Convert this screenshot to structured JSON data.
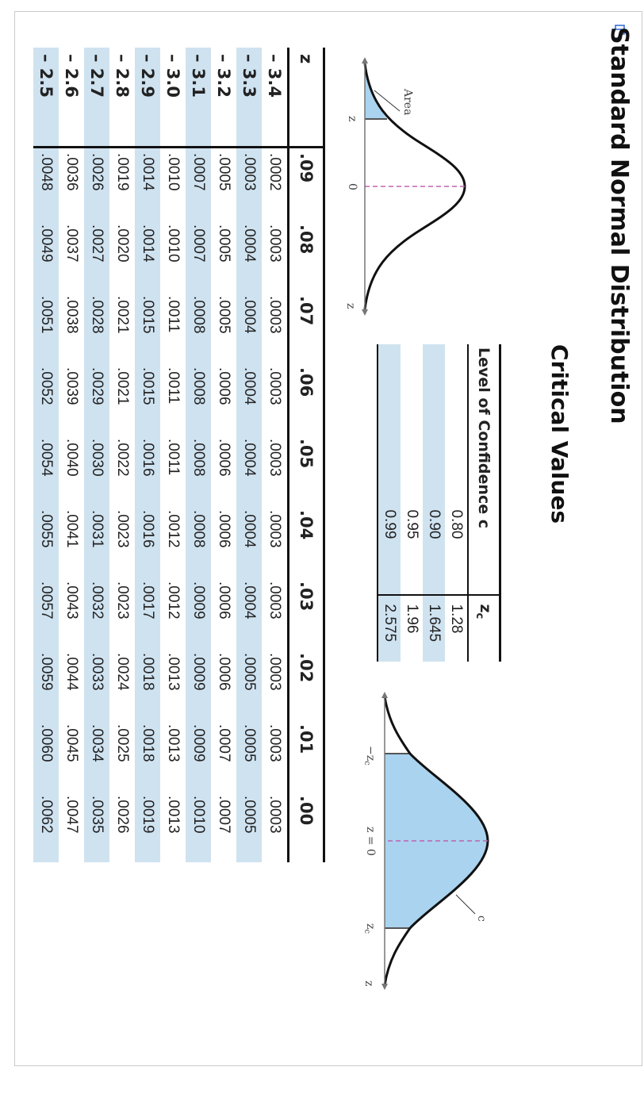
{
  "title": "Standard Normal Distribution",
  "critical_values": {
    "title": "Critical Values",
    "headers": {
      "level": "Level of Confidence c",
      "zc": "z",
      "zc_sub": "c"
    },
    "rows": [
      {
        "level": "0.80",
        "zc": "1.28"
      },
      {
        "level": "0.90",
        "zc": "1.645"
      },
      {
        "level": "0.95",
        "zc": "1.96"
      },
      {
        "level": "0.99",
        "zc": "2.575"
      }
    ]
  },
  "left_curve": {
    "area_label": "Area",
    "z_label": "z",
    "zero_label": "0",
    "axis_label": "z"
  },
  "right_curve": {
    "c_label": "c",
    "neg_zc_label": "−z",
    "neg_zc_sub": "c",
    "zero_label": "z = 0",
    "zc_label": "z",
    "zc_sub": "c",
    "axis_label": "z"
  },
  "z_table": {
    "headers": [
      "z",
      ".09",
      ".08",
      ".07",
      ".06",
      ".05",
      ".04",
      ".03",
      ".02",
      ".01",
      ".00"
    ],
    "rows": [
      {
        "z": "– 3.4",
        "values": [
          ".0002",
          ".0003",
          ".0003",
          ".0003",
          ".0003",
          ".0003",
          ".0003",
          ".0003",
          ".0003",
          ".0003"
        ]
      },
      {
        "z": "– 3.3",
        "values": [
          ".0003",
          ".0004",
          ".0004",
          ".0004",
          ".0004",
          ".0004",
          ".0004",
          ".0005",
          ".0005",
          ".0005"
        ]
      },
      {
        "z": "– 3.2",
        "values": [
          ".0005",
          ".0005",
          ".0005",
          ".0006",
          ".0006",
          ".0006",
          ".0006",
          ".0006",
          ".0007",
          ".0007"
        ]
      },
      {
        "z": "– 3.1",
        "values": [
          ".0007",
          ".0007",
          ".0008",
          ".0008",
          ".0008",
          ".0008",
          ".0009",
          ".0009",
          ".0009",
          ".0010"
        ]
      },
      {
        "z": "– 3.0",
        "values": [
          ".0010",
          ".0010",
          ".0011",
          ".0011",
          ".0011",
          ".0012",
          ".0012",
          ".0013",
          ".0013",
          ".0013"
        ]
      },
      {
        "z": "– 2.9",
        "values": [
          ".0014",
          ".0014",
          ".0015",
          ".0015",
          ".0016",
          ".0016",
          ".0017",
          ".0018",
          ".0018",
          ".0019"
        ]
      },
      {
        "z": "– 2.8",
        "values": [
          ".0019",
          ".0020",
          ".0021",
          ".0021",
          ".0022",
          ".0023",
          ".0023",
          ".0024",
          ".0025",
          ".0026"
        ]
      },
      {
        "z": "– 2.7",
        "values": [
          ".0026",
          ".0027",
          ".0028",
          ".0029",
          ".0030",
          ".0031",
          ".0032",
          ".0033",
          ".0034",
          ".0035"
        ]
      },
      {
        "z": "– 2.6",
        "values": [
          ".0036",
          ".0037",
          ".0038",
          ".0039",
          ".0040",
          ".0041",
          ".0043",
          ".0044",
          ".0045",
          ".0047"
        ]
      },
      {
        "z": "– 2.5",
        "values": [
          ".0048",
          ".0049",
          ".0051",
          ".0052",
          ".0054",
          ".0055",
          ".0057",
          ".0059",
          ".0060",
          ".0062"
        ]
      }
    ]
  },
  "colors": {
    "shade": "#cfe2f0",
    "curve_fill": "#a9d3ee",
    "dash": "#c063b3"
  }
}
